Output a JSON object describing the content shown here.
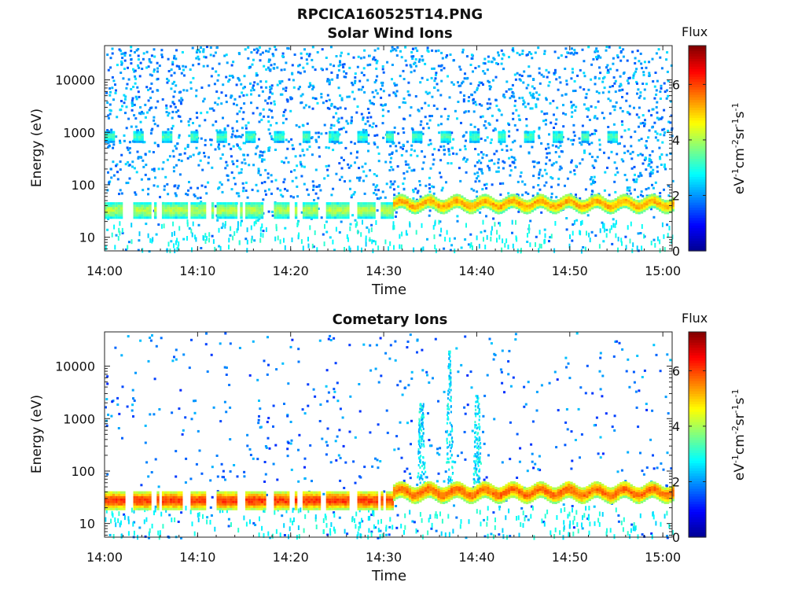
{
  "figure_title": "RPCICA160525T14.PNG",
  "colorbar_colors": [
    "#00008f",
    "#0000ff",
    "#0080ff",
    "#00ffff",
    "#80ff80",
    "#ffff00",
    "#ff8000",
    "#ff0000",
    "#800000"
  ],
  "chart_data": [
    {
      "type": "heatmap",
      "title": "Solar Wind Ions",
      "xlabel": "Time",
      "ylabel": "Energy (eV)",
      "yscale": "log",
      "ylim": [
        5.5,
        45000
      ],
      "xlim": [
        "14:00",
        "15:01"
      ],
      "x_ticks": [
        "14:00",
        "14:10",
        "14:20",
        "14:30",
        "14:40",
        "14:50",
        "15:00"
      ],
      "y_ticks": [
        "10",
        "100",
        "1000",
        "10000"
      ],
      "colorbar": {
        "label": "Flux",
        "unit": "eV-1cm-2sr-1s-1",
        "range": [
          0,
          7.4
        ],
        "ticks": [
          "0",
          "2",
          "4",
          "6"
        ]
      },
      "grid": false,
      "bands": [
        {
          "time_start": "14:00",
          "time_end": "14:31",
          "energy_low": 25,
          "energy_high": 48,
          "flux": 3.7,
          "pulsed": true
        },
        {
          "time_start": "14:31",
          "time_end": "15:01",
          "energy_low": 35,
          "energy_high": 60,
          "flux": 4.8,
          "pulsed": false
        },
        {
          "time_start": "14:00",
          "time_end": "14:56",
          "energy_low": 700,
          "energy_high": 1100,
          "flux": 3.0,
          "pulsed": true
        }
      ],
      "scatter_flux": [
        1.5,
        2.6
      ]
    },
    {
      "type": "heatmap",
      "title": "Cometary Ions",
      "xlabel": "Time",
      "ylabel": "Energy (eV)",
      "yscale": "log",
      "ylim": [
        5.5,
        45000
      ],
      "xlim": [
        "14:00",
        "15:01"
      ],
      "x_ticks": [
        "14:00",
        "14:10",
        "14:20",
        "14:30",
        "14:40",
        "14:50",
        "15:00"
      ],
      "y_ticks": [
        "10",
        "100",
        "1000",
        "10000"
      ],
      "colorbar": {
        "label": "Flux",
        "unit": "eV-1cm-2sr-1s-1",
        "range": [
          0,
          7.4
        ],
        "ticks": [
          "0",
          "2",
          "4",
          "6"
        ]
      },
      "grid": false,
      "bands": [
        {
          "time_start": "14:00",
          "time_end": "14:31",
          "energy_low": 20,
          "energy_high": 42,
          "flux": 5.5,
          "pulsed": true
        },
        {
          "time_start": "14:31",
          "time_end": "15:01",
          "energy_low": 30,
          "energy_high": 58,
          "flux": 5.2,
          "pulsed": false
        }
      ],
      "spikes": [
        {
          "time": "14:34",
          "energy_top": 2000
        },
        {
          "time": "14:37",
          "energy_top": 20000
        },
        {
          "time": "14:40",
          "energy_top": 3000
        }
      ],
      "scatter_flux": [
        1.2,
        2.4
      ]
    }
  ]
}
